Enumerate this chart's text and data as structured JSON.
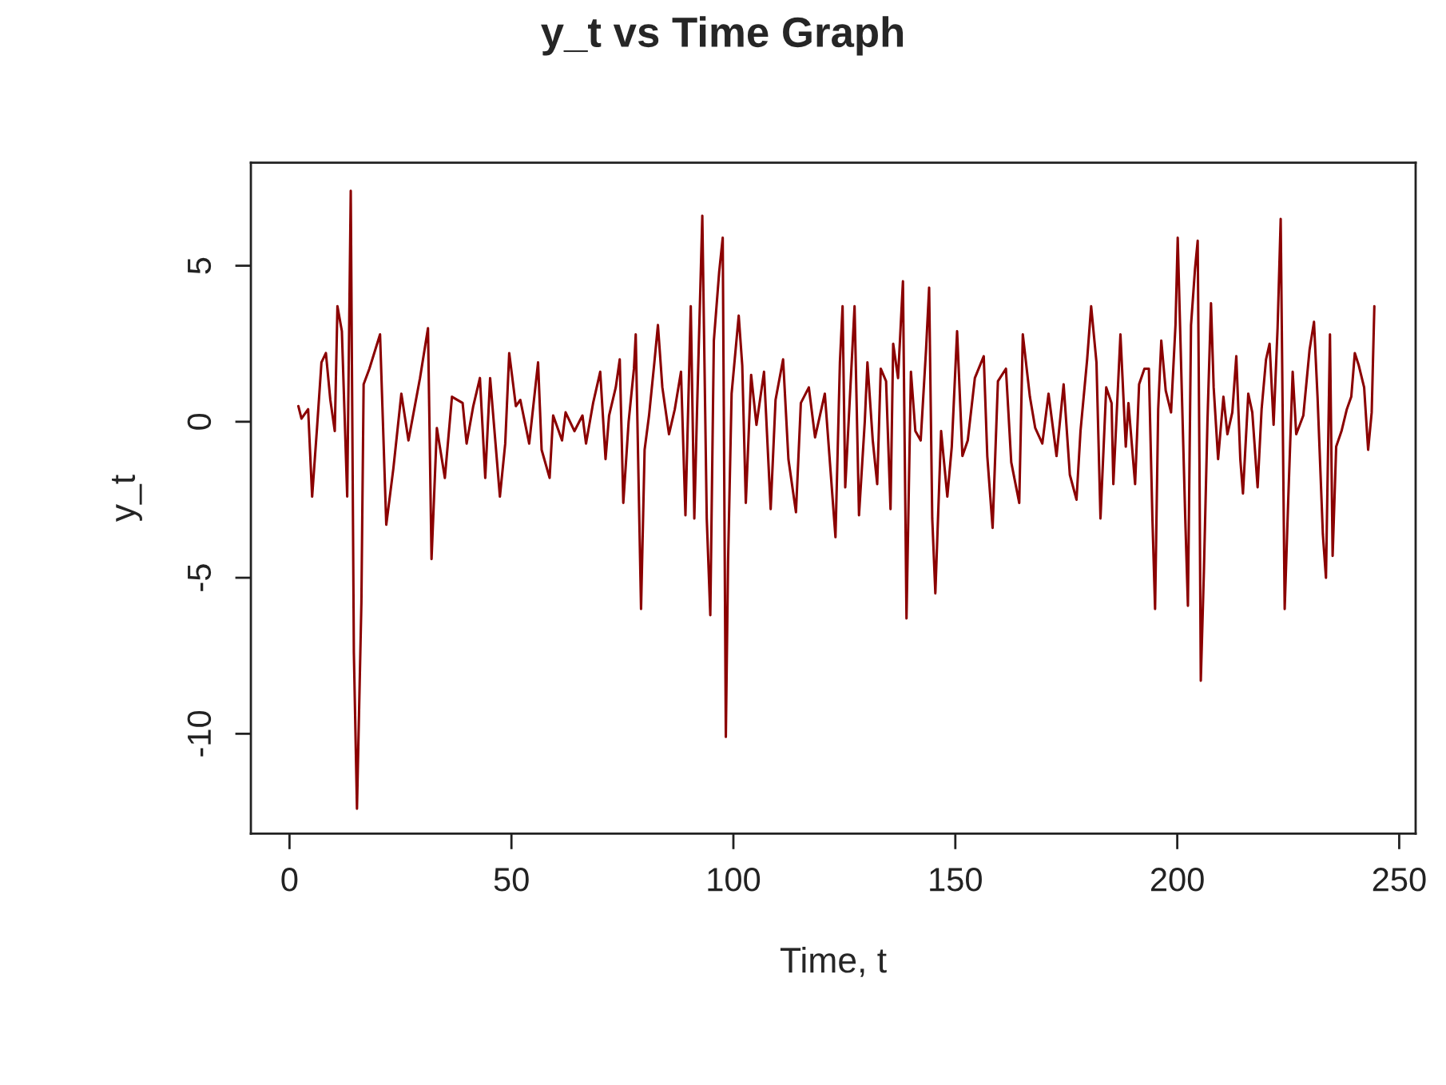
{
  "chart_data": {
    "type": "line",
    "title": "y_t vs Time Graph",
    "xlabel": "Time, t",
    "ylabel": "y_t",
    "xlim": [
      -8.7,
      253.7
    ],
    "ylim": [
      -13.2,
      8.3
    ],
    "xticks": [
      0,
      50,
      100,
      150,
      200,
      250
    ],
    "yticks": [
      -10,
      -5,
      0,
      5
    ],
    "grid": false,
    "legend": false,
    "marker": "none",
    "line_style": "solid",
    "series": [
      {
        "color": "#8b0000",
        "x": [
          2,
          2.7,
          4.2,
          5.1,
          6.2,
          7.2,
          8.2,
          9.2,
          10.2,
          10.8,
          11.8,
          13,
          13.8,
          14.5,
          15.2,
          16.2,
          16.7,
          18,
          20.4,
          21.8,
          23.4,
          25.2,
          26.8,
          29.4,
          31.2,
          32,
          33.2,
          35,
          36.6,
          39,
          39.9,
          41.4,
          42.9,
          44.1,
          45.2,
          47.4,
          48.6,
          49.5,
          51,
          52,
          54,
          56,
          56.8,
          58.6,
          59.4,
          61.4,
          62.2,
          64.2,
          66,
          66.8,
          68.4,
          70,
          71.2,
          72,
          73.5,
          74.4,
          75.2,
          76.4,
          77.6,
          78,
          79.2,
          80,
          81,
          82.2,
          83,
          84,
          85.5,
          86.8,
          88.2,
          89.2,
          90.4,
          91.2,
          91.8,
          93,
          94,
          94.8,
          95.6,
          96.8,
          97.6,
          98.3,
          98.8,
          99.6,
          101.2,
          102,
          102.8,
          104,
          105.2,
          106.9,
          108.4,
          109.5,
          111.2,
          112.4,
          114.1,
          115.2,
          117,
          118.4,
          120.6,
          123,
          124,
          124.6,
          125.2,
          126.4,
          127.3,
          128.3,
          129.6,
          130.2,
          131.4,
          132.4,
          133.2,
          134.4,
          135.4,
          136,
          137.1,
          138.2,
          139,
          140,
          141,
          142.2,
          143.4,
          144.1,
          144.8,
          145.5,
          146.8,
          148.2,
          149.2,
          150.4,
          151.6,
          152.8,
          154.4,
          156.4,
          157.2,
          158.4,
          159.6,
          161.4,
          162.6,
          164.4,
          165.2,
          166.8,
          168,
          169.6,
          171,
          172.8,
          174.4,
          175.8,
          177.3,
          178.2,
          179.7,
          180.6,
          181.8,
          182.7,
          184,
          185.2,
          185.6,
          187.2,
          188.4,
          189,
          190.5,
          191.4,
          192.6,
          193.6,
          194.4,
          195,
          195.7,
          196.4,
          197.4,
          198.6,
          199.6,
          200.1,
          201,
          201.8,
          202.4,
          203.1,
          204,
          204.6,
          205,
          205.3,
          206,
          206.8,
          207.6,
          208.2,
          209.2,
          210.4,
          211.3,
          212.4,
          213.3,
          214.2,
          214.8,
          216,
          216.9,
          218.1,
          219,
          220,
          220.8,
          221.7,
          222.6,
          223.3,
          224.2,
          225,
          226,
          226.8,
          228.4,
          229.8,
          230.8,
          231.6,
          232.8,
          233.5,
          234.4,
          235,
          235.8,
          237,
          238.2,
          239.2,
          240,
          240.9,
          242.1,
          243,
          243.8,
          244.4
        ],
        "values": [
          0.5,
          0.1,
          0.4,
          -2.4,
          -0.2,
          1.9,
          2.2,
          0.7,
          -0.3,
          3.7,
          2.9,
          -2.4,
          7.4,
          -7.4,
          -12.4,
          -5.8,
          1.2,
          1.7,
          2.8,
          -3.3,
          -1.5,
          0.9,
          -0.6,
          1.4,
          3.0,
          -4.4,
          -0.2,
          -1.8,
          0.8,
          0.6,
          -0.7,
          0.5,
          1.4,
          -1.8,
          1.4,
          -2.4,
          -0.7,
          2.2,
          0.5,
          0.7,
          -0.7,
          1.9,
          -0.9,
          -1.8,
          0.2,
          -0.6,
          0.3,
          -0.3,
          0.2,
          -0.7,
          0.6,
          1.6,
          -1.2,
          0.2,
          1.1,
          2.0,
          -2.6,
          0,
          1.7,
          2.8,
          -6.0,
          -0.9,
          0.2,
          1.9,
          3.1,
          1.1,
          -0.4,
          0.4,
          1.6,
          -3.0,
          3.7,
          -3.1,
          0.3,
          6.6,
          -3.1,
          -6.2,
          2.6,
          4.8,
          5.9,
          -10.1,
          -4.5,
          0.9,
          3.4,
          1.8,
          -2.6,
          1.5,
          -0.1,
          1.6,
          -2.8,
          0.7,
          2.0,
          -1.2,
          -2.9,
          0.6,
          1.1,
          -0.5,
          0.9,
          -3.7,
          1.9,
          3.7,
          -2.1,
          1.2,
          3.7,
          -3.0,
          0,
          1.9,
          -0.6,
          -2.0,
          1.7,
          1.3,
          -2.8,
          2.5,
          1.4,
          4.5,
          -6.3,
          1.6,
          -0.3,
          -0.6,
          2.3,
          4.3,
          -3.1,
          -5.5,
          -0.3,
          -2.4,
          -0.8,
          2.9,
          -1.1,
          -0.6,
          1.4,
          2.1,
          -1.1,
          -3.4,
          1.3,
          1.7,
          -1.3,
          -2.6,
          2.8,
          0.8,
          -0.2,
          -0.7,
          0.9,
          -1.1,
          1.2,
          -1.7,
          -2.5,
          -0.3,
          2.0,
          3.7,
          1.9,
          -3.1,
          1.1,
          0.6,
          -2.0,
          2.8,
          -0.8,
          0.6,
          -2.0,
          1.2,
          1.7,
          1.7,
          -3.1,
          -6.0,
          0.4,
          2.6,
          1.0,
          0.3,
          3.1,
          5.9,
          1.1,
          -3.1,
          -5.9,
          3.1,
          4.9,
          5.8,
          -1.3,
          -8.3,
          -4.8,
          0,
          3.8,
          1.1,
          -1.2,
          0.8,
          -0.4,
          0.3,
          2.1,
          -1.2,
          -2.3,
          0.9,
          0.3,
          -2.1,
          0.4,
          2.0,
          2.5,
          -0.1,
          3.0,
          6.5,
          -6.0,
          -2.5,
          1.6,
          -0.4,
          0.2,
          2.3,
          3.2,
          0.8,
          -3.6,
          -5.0,
          2.8,
          -4.3,
          -0.8,
          -0.3,
          0.4,
          0.8,
          2.2,
          1.8,
          1.1,
          -0.9,
          0.3,
          3.7
        ]
      }
    ]
  }
}
